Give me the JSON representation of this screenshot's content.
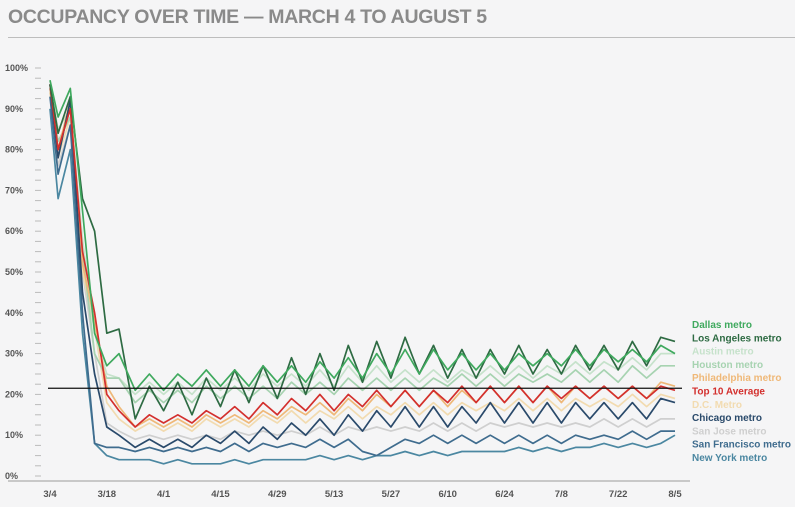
{
  "title": "OCCUPANCY OVER TIME — MARCH 4 TO AUGUST 5",
  "chart_data": {
    "type": "line",
    "title": "OCCUPANCY OVER TIME — MARCH 4 TO AUGUST 5",
    "xlabel": "",
    "ylabel": "",
    "x_unit": "days since 3/4",
    "x": [
      0,
      2,
      5,
      8,
      11,
      14,
      17,
      21,
      24.5,
      28,
      31.5,
      35,
      38.5,
      42,
      45.5,
      49,
      52.5,
      56,
      59.5,
      63,
      66.5,
      70,
      73.5,
      77,
      80.5,
      84,
      87.5,
      91,
      94.5,
      98,
      101.5,
      105,
      108.5,
      112,
      115.5,
      119,
      122.5,
      126,
      129.5,
      133,
      136.5,
      140,
      143.5,
      147,
      150.5,
      154
    ],
    "xlim": [
      0,
      154
    ],
    "x_ticks": [
      {
        "day": 0,
        "label": "3/4"
      },
      {
        "day": 14,
        "label": "3/18"
      },
      {
        "day": 28,
        "label": "4/1"
      },
      {
        "day": 42,
        "label": "4/15"
      },
      {
        "day": 56,
        "label": "4/29"
      },
      {
        "day": 70,
        "label": "5/13"
      },
      {
        "day": 84,
        "label": "5/27"
      },
      {
        "day": 98,
        "label": "6/10"
      },
      {
        "day": 112,
        "label": "6/24"
      },
      {
        "day": 126,
        "label": "7/8"
      },
      {
        "day": 140,
        "label": "7/22"
      },
      {
        "day": 154,
        "label": "8/5"
      }
    ],
    "ylim": [
      0,
      100
    ],
    "y_ticks": [
      {
        "v": 0,
        "label": "0%"
      },
      {
        "v": 10,
        "label": "10%"
      },
      {
        "v": 20,
        "label": "20%"
      },
      {
        "v": 30,
        "label": "30%"
      },
      {
        "v": 40,
        "label": "40%"
      },
      {
        "v": 50,
        "label": "50%"
      },
      {
        "v": 60,
        "label": "60%"
      },
      {
        "v": 70,
        "label": "70%"
      },
      {
        "v": 80,
        "label": "80%"
      },
      {
        "v": 90,
        "label": "90%"
      },
      {
        "v": 100,
        "label": "100%"
      }
    ],
    "reference_line": 21.5,
    "legend_position": "right",
    "series": [
      {
        "name": "Dallas metro",
        "color": "#3fa95e",
        "values": [
          97,
          88,
          95,
          65,
          35,
          27,
          30,
          21,
          25,
          21,
          25,
          22,
          26,
          22,
          26,
          22,
          27,
          23,
          27,
          23,
          28,
          24,
          29,
          24,
          30,
          25,
          31,
          25,
          31,
          26,
          30,
          26,
          30,
          26,
          30,
          27,
          30,
          27,
          31,
          27,
          31,
          28,
          31,
          28,
          32,
          30
        ]
      },
      {
        "name": "Los Angeles metro",
        "color": "#2e6b43",
        "values": [
          96,
          84,
          93,
          68,
          60,
          35,
          36,
          14,
          22,
          16,
          23,
          15,
          24,
          17,
          26,
          18,
          27,
          19,
          29,
          20,
          30,
          21,
          32,
          23,
          33,
          24,
          34,
          25,
          32,
          24,
          31,
          24,
          31,
          25,
          32,
          25,
          31,
          25,
          32,
          26,
          32,
          26,
          33,
          27,
          34,
          33
        ]
      },
      {
        "name": "Austin metro",
        "color": "#c6e2cb",
        "values": [
          96,
          85,
          90,
          58,
          35,
          25,
          24,
          20,
          23,
          20,
          23,
          20,
          24,
          21,
          24,
          21,
          25,
          22,
          25,
          22,
          26,
          22,
          27,
          23,
          27,
          23,
          26,
          23,
          26,
          23,
          26,
          24,
          27,
          24,
          27,
          24,
          27,
          25,
          28,
          25,
          28,
          26,
          29,
          26,
          30,
          30
        ]
      },
      {
        "name": "Houston metro",
        "color": "#a7d3b1",
        "values": [
          95,
          82,
          88,
          55,
          30,
          24,
          24,
          18,
          21,
          18,
          21,
          18,
          22,
          19,
          22,
          19,
          22,
          19,
          23,
          20,
          23,
          20,
          24,
          21,
          24,
          21,
          24,
          21,
          24,
          22,
          25,
          22,
          25,
          22,
          25,
          23,
          25,
          23,
          26,
          23,
          26,
          23,
          27,
          24,
          27,
          27
        ]
      },
      {
        "name": "Philadelphia metro",
        "color": "#efb878",
        "values": [
          95,
          80,
          92,
          52,
          38,
          22,
          17,
          12,
          14,
          12,
          14,
          12,
          15,
          13,
          15,
          13,
          16,
          14,
          17,
          15,
          18,
          15,
          19,
          16,
          20,
          17,
          21,
          17,
          21,
          17,
          21,
          18,
          22,
          18,
          22,
          18,
          22,
          18,
          22,
          19,
          22,
          19,
          22,
          19,
          23,
          22
        ]
      },
      {
        "name": "Top 10 Average",
        "color": "#d3302e",
        "values": [
          96,
          80,
          90,
          55,
          40,
          20,
          16,
          12,
          15,
          13,
          15,
          13,
          16,
          14,
          17,
          14,
          18,
          15,
          19,
          16,
          20,
          16,
          20,
          17,
          21,
          17,
          21,
          17,
          21,
          18,
          22,
          18,
          22,
          18,
          22,
          18,
          22,
          19,
          22,
          19,
          22,
          19,
          22,
          19,
          22,
          21
        ]
      },
      {
        "name": "D.C. Metro",
        "color": "#f2dbb0",
        "values": [
          94,
          78,
          88,
          50,
          36,
          18,
          14,
          11,
          13,
          11,
          13,
          11,
          14,
          12,
          14,
          12,
          15,
          13,
          16,
          13,
          16,
          14,
          17,
          14,
          17,
          15,
          18,
          15,
          18,
          15,
          18,
          16,
          18,
          16,
          19,
          16,
          19,
          16,
          19,
          17,
          19,
          17,
          20,
          17,
          20,
          19
        ]
      },
      {
        "name": "Chicago metro",
        "color": "#2a4a6b",
        "values": [
          96,
          78,
          92,
          45,
          25,
          12,
          10,
          7,
          9,
          7,
          9,
          7,
          10,
          8,
          11,
          8,
          12,
          9,
          13,
          10,
          14,
          10,
          15,
          11,
          16,
          12,
          17,
          12,
          17,
          12,
          17,
          13,
          18,
          13,
          18,
          13,
          18,
          13,
          18,
          14,
          18,
          14,
          18,
          14,
          19,
          18
        ]
      },
      {
        "name": "San Jose metro",
        "color": "#cfcfcf",
        "values": [
          94,
          76,
          86,
          50,
          30,
          13,
          11,
          9,
          10,
          9,
          10,
          9,
          10,
          9,
          11,
          10,
          11,
          10,
          11,
          10,
          12,
          10,
          12,
          11,
          12,
          11,
          12,
          11,
          13,
          11,
          13,
          11,
          13,
          12,
          13,
          12,
          13,
          12,
          13,
          12,
          14,
          12,
          14,
          12,
          14,
          14
        ]
      },
      {
        "name": "San Francisco metro",
        "color": "#3f6c8e",
        "values": [
          93,
          74,
          86,
          40,
          8,
          7,
          7,
          6,
          7,
          6,
          7,
          6,
          7,
          6,
          8,
          6,
          8,
          7,
          8,
          7,
          9,
          7,
          9,
          6,
          5,
          7,
          9,
          8,
          10,
          8,
          10,
          8,
          10,
          8,
          10,
          8,
          10,
          8,
          10,
          9,
          10,
          9,
          11,
          9,
          11,
          11
        ]
      },
      {
        "name": "New York metro",
        "color": "#4b87a1",
        "values": [
          90,
          68,
          80,
          35,
          8,
          5,
          4,
          4,
          4,
          3,
          4,
          3,
          3,
          3,
          4,
          3,
          4,
          4,
          4,
          4,
          5,
          4,
          5,
          4,
          5,
          5,
          6,
          5,
          6,
          5,
          6,
          6,
          6,
          6,
          7,
          6,
          7,
          6,
          7,
          7,
          8,
          7,
          8,
          7,
          8,
          10
        ]
      }
    ]
  }
}
